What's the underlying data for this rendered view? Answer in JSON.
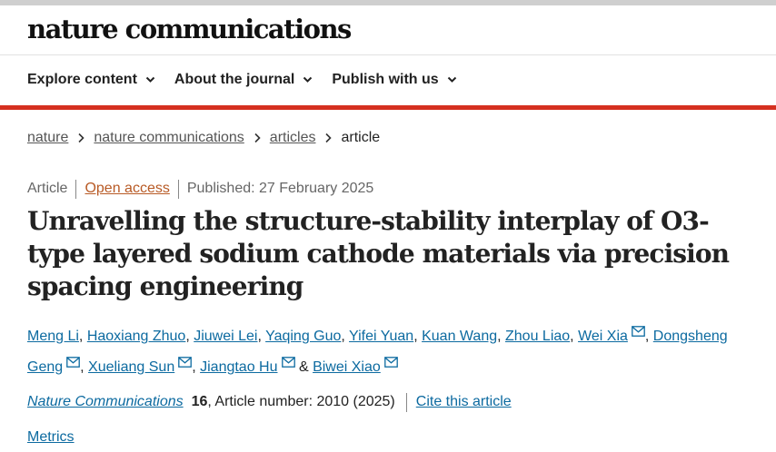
{
  "header": {
    "brand": "nature communications",
    "nav": [
      {
        "label": "Explore content"
      },
      {
        "label": "About the journal"
      },
      {
        "label": "Publish with us"
      }
    ]
  },
  "breadcrumb": {
    "items": [
      "nature",
      "nature communications",
      "articles"
    ],
    "current": "article"
  },
  "article": {
    "type": "Article",
    "access": "Open access",
    "published": "Published: 27 February 2025",
    "title": "Unravelling the structure-stability interplay of O3-type layered sodium cathode materials via precision spacing engineering",
    "authors": [
      {
        "name": "Meng Li",
        "sep": ", "
      },
      {
        "name": "Haoxiang Zhuo",
        "sep": ", "
      },
      {
        "name": "Jiuwei Lei",
        "sep": ", "
      },
      {
        "name": "Yaqing Guo",
        "sep": ", "
      },
      {
        "name": "Yifei Yuan",
        "sep": ", "
      },
      {
        "name": "Kuan Wang",
        "sep": ", "
      },
      {
        "name": "Zhou Liao",
        "sep": ", "
      },
      {
        "name": "Wei Xia",
        "sep": ", "
      },
      {
        "name": "Dongsheng Geng",
        "sep": ", "
      },
      {
        "name": "Xueliang Sun",
        "sep": ", "
      },
      {
        "name": "Jiangtao Hu",
        "sep": " & "
      },
      {
        "name": "Biwei Xiao",
        "sep": ""
      }
    ],
    "journal": "Nature Communications",
    "volume": "16",
    "article_number": ", Article number: 2010 (2025)",
    "cite_label": "Cite this article",
    "metrics_label": "Metrics"
  },
  "colors": {
    "accent_red": "#d5301f",
    "link_blue": "#0c6aa0",
    "open_access_orange": "#b85a25"
  },
  "icons": {
    "nav_chevron": "chevron-down-icon",
    "breadcrumb_separator": "chevron-right-icon",
    "author_contact": "mail-icon"
  }
}
